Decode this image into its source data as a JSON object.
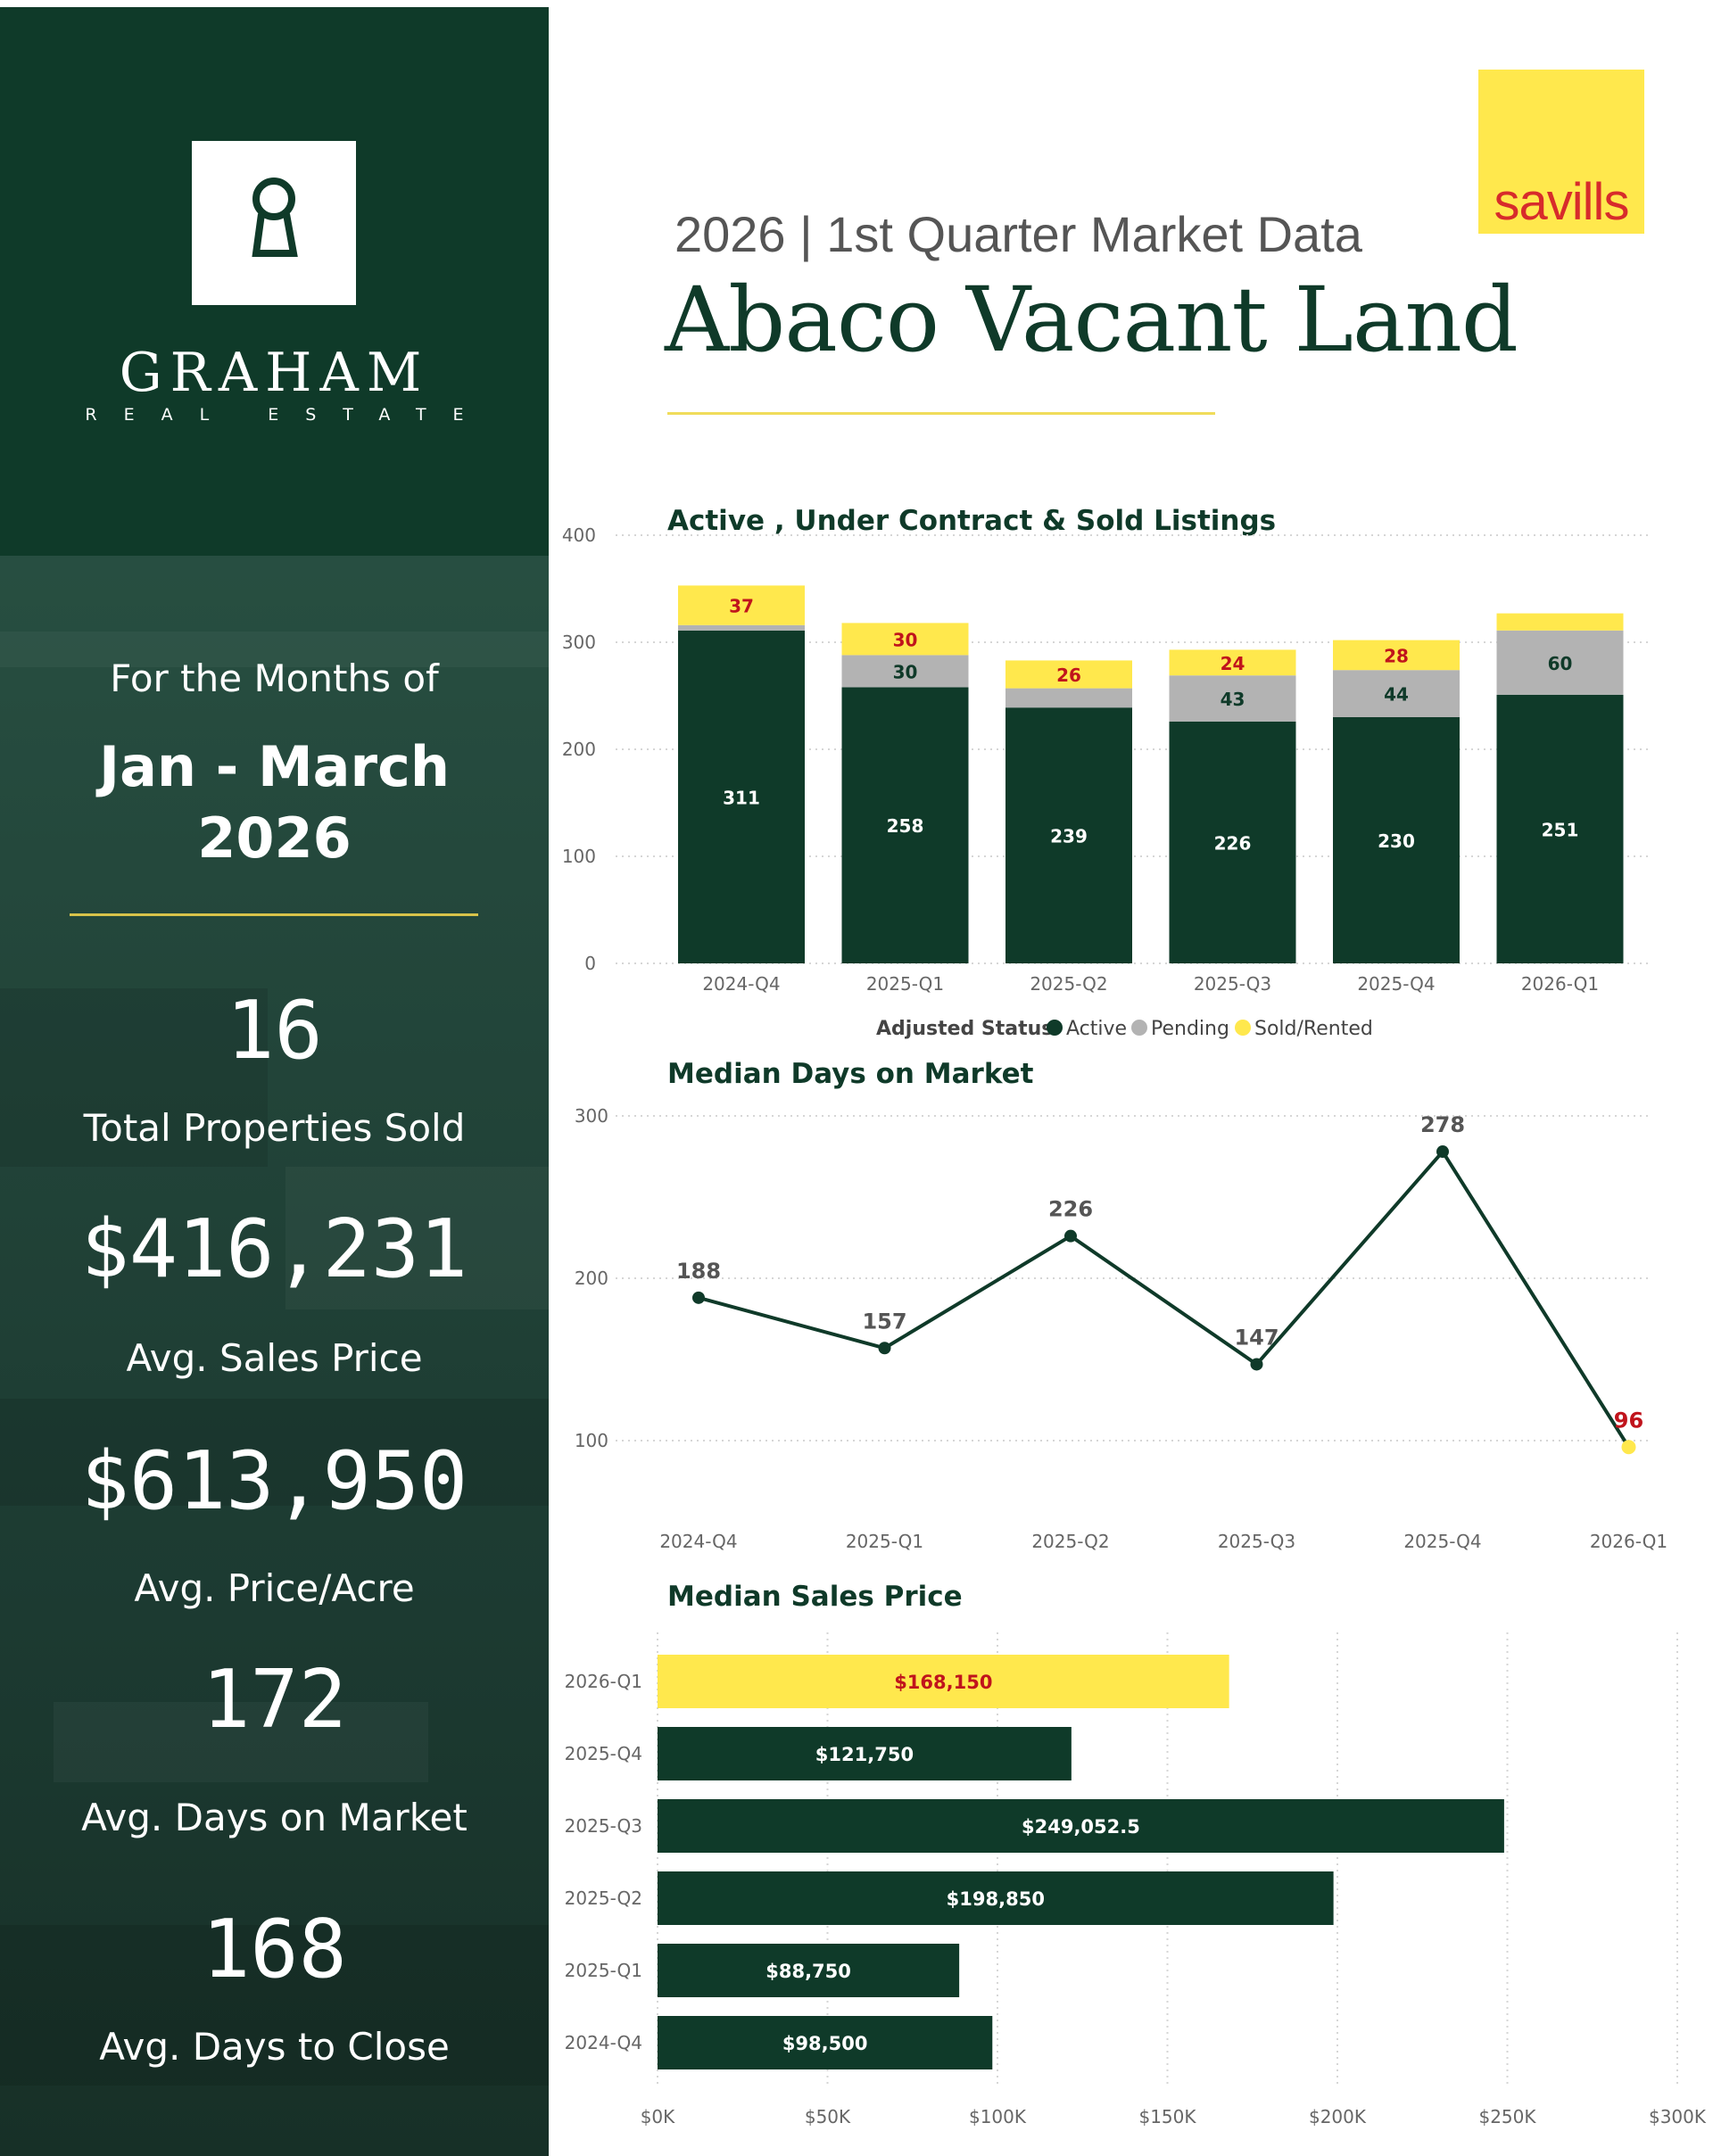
{
  "sidebar": {
    "brand": {
      "name": "GRAHAM",
      "subtitle": "REAL ESTATE"
    },
    "months_label": "For the Months of",
    "months_range_line1": "Jan - March",
    "months_range_line2": "2026",
    "stats": [
      {
        "value": "16",
        "label": "Total Properties Sold"
      },
      {
        "value": "$416,231",
        "label": "Avg. Sales Price"
      },
      {
        "value": "$613,950",
        "label": "Avg. Price/Acre"
      },
      {
        "value": "172",
        "label": "Avg. Days on Market"
      },
      {
        "value": "168",
        "label": "Avg. Days to Close"
      }
    ]
  },
  "header": {
    "subtitle": "2026 | 1st  Quarter Market Data",
    "title": "Abaco Vacant Land",
    "partner_logo": "savills"
  },
  "colors": {
    "dark_green": "#0f3a29",
    "pending_gray": "#b3b3b3",
    "sold_yellow": "#ffe84d",
    "label_red": "#c0141c"
  },
  "chart_data": [
    {
      "type": "bar",
      "stacked": true,
      "title": "Active , Under Contract & Sold Listings",
      "categories": [
        "2024-Q4",
        "2025-Q1",
        "2025-Q2",
        "2025-Q3",
        "2025-Q4",
        "2026-Q1"
      ],
      "series": [
        {
          "name": "Active",
          "values": [
            311,
            258,
            239,
            226,
            230,
            251
          ],
          "labels": [
            "311",
            "258",
            "239",
            "226",
            "230",
            "251"
          ]
        },
        {
          "name": "Pending",
          "values": [
            5,
            30,
            18,
            43,
            44,
            60
          ],
          "labels": [
            "",
            "30",
            "",
            "43",
            "44",
            "60"
          ]
        },
        {
          "name": "Sold/Rented",
          "values": [
            37,
            30,
            26,
            24,
            28,
            16
          ],
          "labels": [
            "37",
            "30",
            "26",
            "24",
            "28",
            ""
          ]
        }
      ],
      "yticks": [
        "0",
        "100",
        "200",
        "300",
        "400"
      ],
      "ylim": [
        0,
        400
      ],
      "legend_title": "Adjusted Status",
      "legend_position": "bottom-center",
      "grid": true
    },
    {
      "type": "line",
      "title": "Median Days on Market",
      "categories": [
        "2024-Q4",
        "2025-Q1",
        "2025-Q2",
        "2025-Q3",
        "2025-Q4",
        "2026-Q1"
      ],
      "values": [
        188,
        157,
        226,
        147,
        278,
        96
      ],
      "labels": [
        "188",
        "157",
        "226",
        "147",
        "278",
        "96"
      ],
      "yticks": [
        "100",
        "200",
        "300"
      ],
      "ylim": [
        70,
        300
      ],
      "highlight_last": true,
      "grid": true
    },
    {
      "type": "bar",
      "orientation": "horizontal",
      "title": "Median Sales Price",
      "categories": [
        "2026-Q1",
        "2025-Q4",
        "2025-Q3",
        "2025-Q2",
        "2025-Q1",
        "2024-Q4"
      ],
      "values": [
        168150,
        121750,
        249052.5,
        198850,
        88750,
        98500
      ],
      "labels": [
        "$168,150",
        "$121,750",
        "$249,052.5",
        "$198,850",
        "$88,750",
        "$98,500"
      ],
      "xticks": [
        "$0K",
        "$50K",
        "$100K",
        "$150K",
        "$200K",
        "$250K",
        "$300K"
      ],
      "xlim": [
        0,
        300000
      ],
      "highlight_first": true,
      "grid": true
    }
  ]
}
